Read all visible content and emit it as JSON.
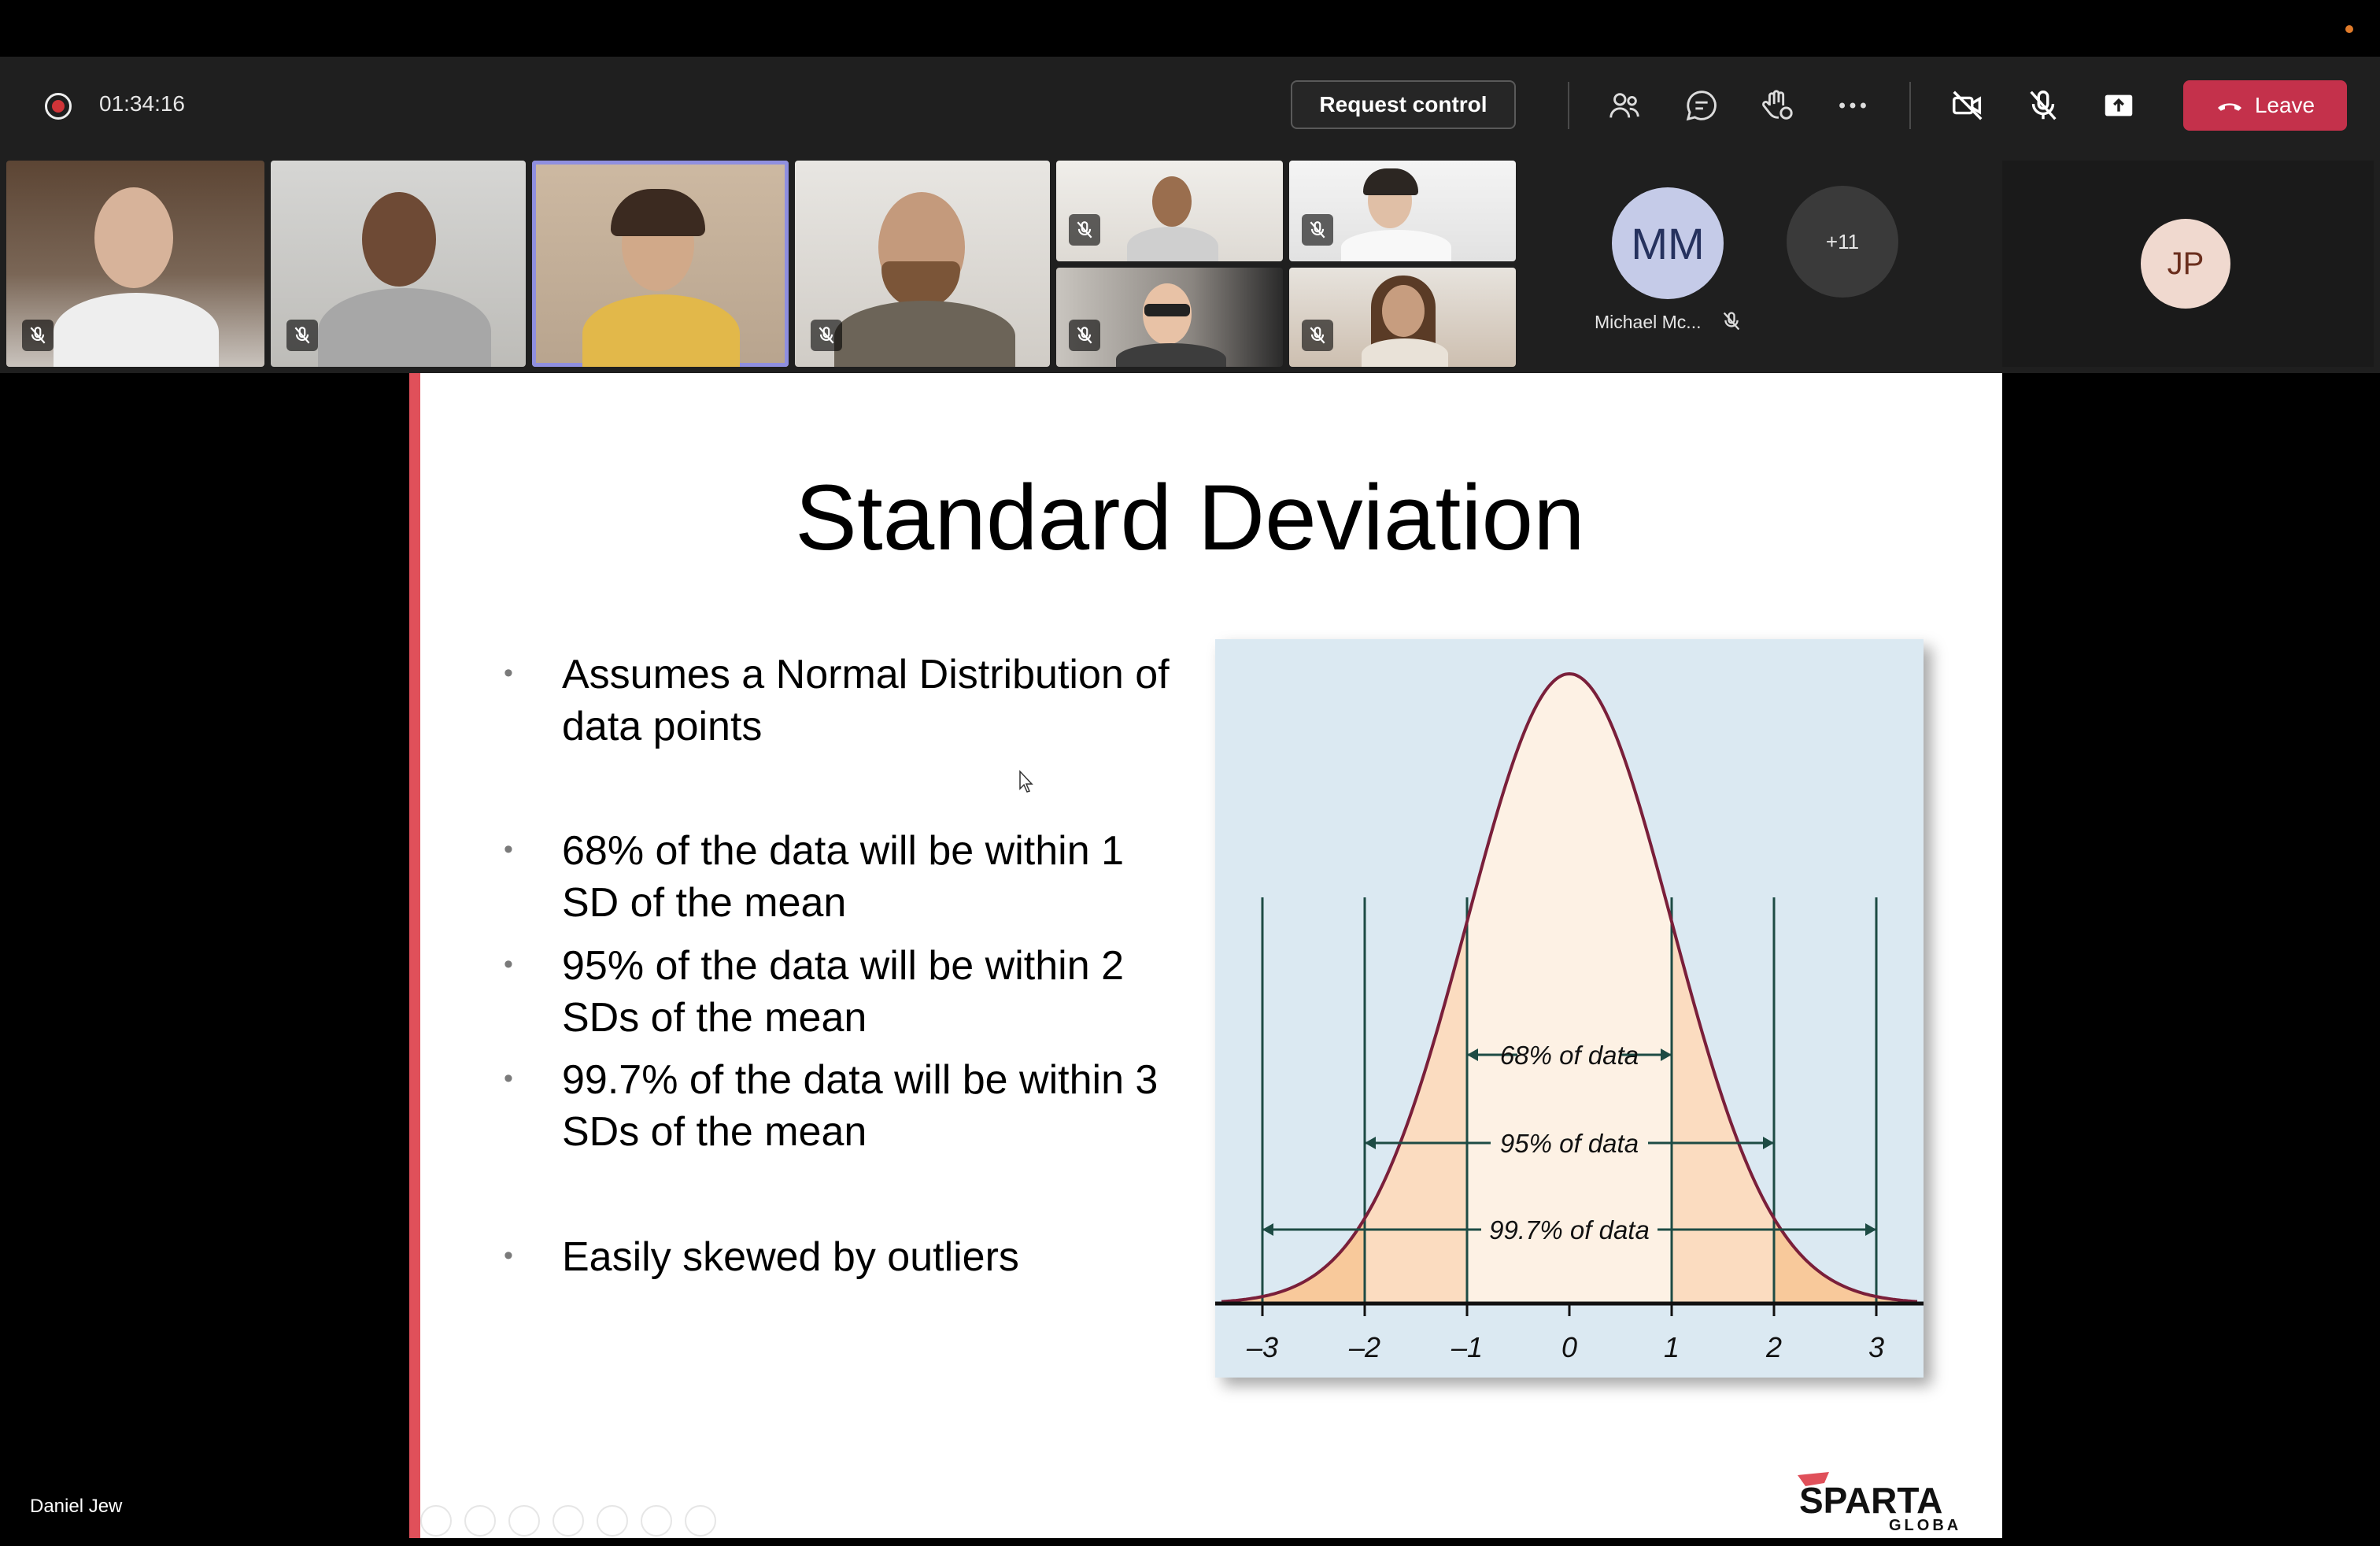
{
  "toolbar": {
    "timer": "01:34:16",
    "request_control_label": "Request control",
    "leave_label": "Leave",
    "icons": [
      "people-icon",
      "chat-icon",
      "raise-hand-icon",
      "more-icon",
      "camera-off-icon",
      "mic-off-icon",
      "share-icon"
    ]
  },
  "participants": {
    "featured_name": "Michael Mc...",
    "featured_initials": "MM",
    "overflow_count": "+11",
    "self_initials": "JP"
  },
  "stage": {
    "presenter_name": "Daniel Jew"
  },
  "slide": {
    "title": "Standard Deviation",
    "bullets": [
      "Assumes a Normal Distribution of data points",
      "68% of the data will be within 1 SD of the mean",
      "95% of the data will be within 2 SDs of the mean",
      "99.7% of the data will be within 3 SDs of the mean",
      "Easily skewed by outliers"
    ],
    "logo_text": "SPARTA",
    "logo_subtext": "GLOBAL"
  },
  "chart_data": {
    "type": "area",
    "x_ticks": [
      "–3",
      "–2",
      "–1",
      "0",
      "1",
      "2",
      "3"
    ],
    "x_values": [
      -3,
      -2,
      -1,
      0,
      1,
      2,
      3
    ],
    "annotations": [
      {
        "label": "68% of data",
        "from": -1,
        "to": 1
      },
      {
        "label": "95% of data",
        "from": -2,
        "to": 2
      },
      {
        "label": "99.7% of data",
        "from": -3,
        "to": 3
      }
    ],
    "curve": "normal",
    "colors": {
      "background": "#dbe9f2",
      "curve": "#7a1f3a",
      "inner_fill": "#fdf1e4",
      "outer_fill": "#f8c99b",
      "lines": "#1d4b44"
    }
  }
}
